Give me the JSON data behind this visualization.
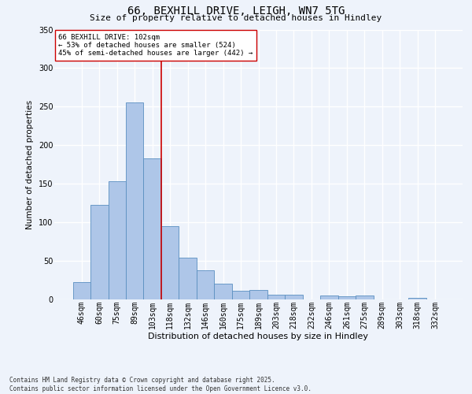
{
  "title_line1": "66, BEXHILL DRIVE, LEIGH, WN7 5TG",
  "title_line2": "Size of property relative to detached houses in Hindley",
  "xlabel": "Distribution of detached houses by size in Hindley",
  "ylabel": "Number of detached properties",
  "categories": [
    "46sqm",
    "60sqm",
    "75sqm",
    "89sqm",
    "103sqm",
    "118sqm",
    "132sqm",
    "146sqm",
    "160sqm",
    "175sqm",
    "189sqm",
    "203sqm",
    "218sqm",
    "232sqm",
    "246sqm",
    "261sqm",
    "275sqm",
    "289sqm",
    "303sqm",
    "318sqm",
    "332sqm"
  ],
  "values": [
    22,
    123,
    153,
    255,
    183,
    95,
    54,
    38,
    20,
    11,
    12,
    6,
    6,
    0,
    5,
    4,
    5,
    0,
    0,
    2,
    0
  ],
  "bar_color": "#aec6e8",
  "bar_edge_color": "#5a8fc0",
  "property_bin_index": 4,
  "redline_label": "66 BEXHILL DRIVE: 102sqm",
  "annotation_line1": "← 53% of detached houses are smaller (524)",
  "annotation_line2": "45% of semi-detached houses are larger (442) →",
  "footer_line1": "Contains HM Land Registry data © Crown copyright and database right 2025.",
  "footer_line2": "Contains public sector information licensed under the Open Government Licence v3.0.",
  "ylim": [
    0,
    350
  ],
  "yticks": [
    0,
    50,
    100,
    150,
    200,
    250,
    300,
    350
  ],
  "background_color": "#eef3fb",
  "grid_color": "#ffffff",
  "annotation_box_color": "#ffffff",
  "annotation_box_edge": "#cc0000",
  "redline_color": "#cc0000",
  "title_fontsize": 10,
  "subtitle_fontsize": 8,
  "ylabel_fontsize": 7.5,
  "xlabel_fontsize": 8,
  "tick_fontsize": 7,
  "annotation_fontsize": 6.5,
  "footer_fontsize": 5.5
}
